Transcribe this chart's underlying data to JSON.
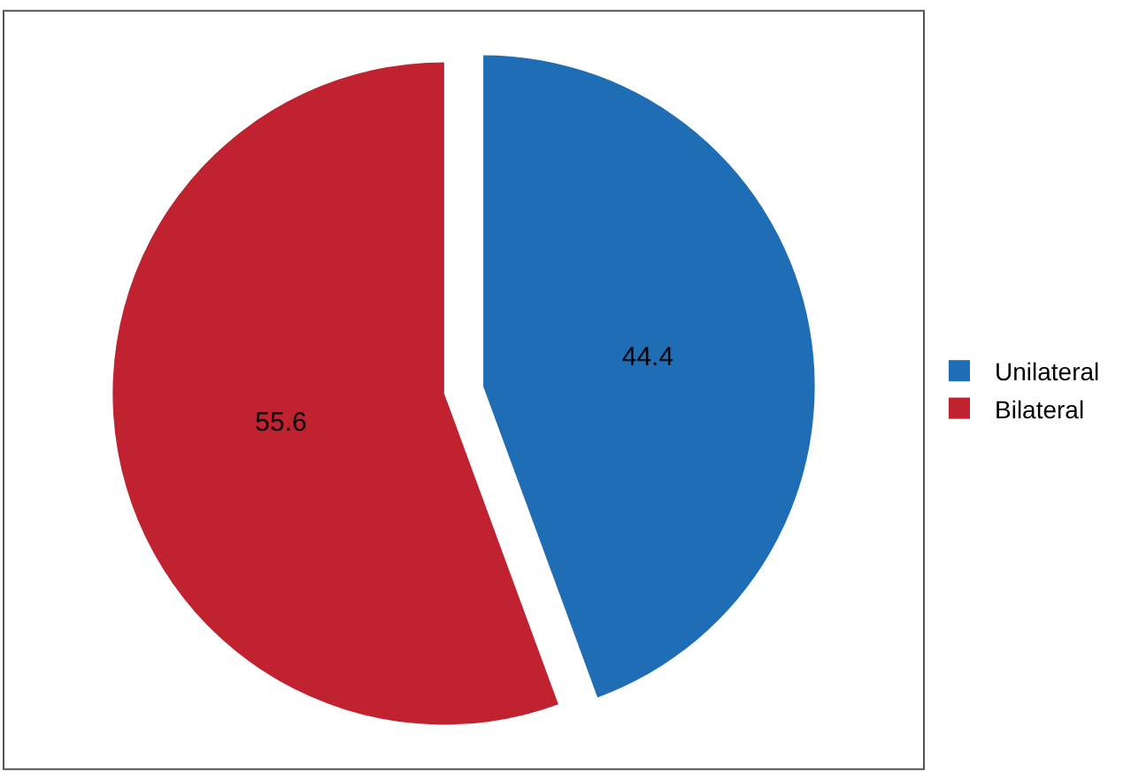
{
  "chart_data": {
    "type": "pie",
    "categories": [
      "Unilateral",
      "Bilateral"
    ],
    "values": [
      44.4,
      55.6
    ],
    "colors": [
      "#1f6db4",
      "#c0222f"
    ],
    "data_labels": true,
    "legend": "right"
  }
}
